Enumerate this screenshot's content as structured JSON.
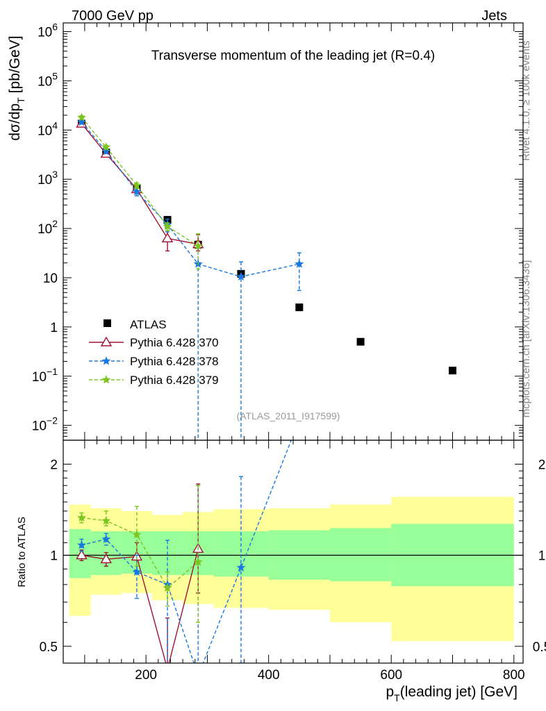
{
  "header": {
    "left": "7000 GeV pp",
    "right": "Jets"
  },
  "side": {
    "rivet": "Rivet 4.1.0, ≥ 100k events",
    "mcplots": "mcplots.cern.ch [arXiv:1306.3436]"
  },
  "chart_data": {
    "type": "scatter",
    "title": "Transverse momentum of the leading jet (R=0.4)",
    "analysis_tag": "(ATLAS_2011_I917599)",
    "xlabel": {
      "base": "p",
      "sub": "T",
      "rest": "(leading jet) [GeV]"
    },
    "ylabel": {
      "text": "dσ/dp",
      "sub": "T",
      "rest": "[pb/GeV]"
    },
    "ratio_ylabel": "Ratio to ATLAS",
    "xlim": [
      65,
      815
    ],
    "ylim_log": [
      0.005,
      1500000
    ],
    "ratio_ylim": [
      0.44,
      2.4
    ],
    "x_ticks": [
      {
        "v": 200,
        "label": "200"
      },
      {
        "v": 400,
        "label": "400"
      },
      {
        "v": 600,
        "label": "600"
      },
      {
        "v": 800,
        "label": "800"
      }
    ],
    "y_ticks": [
      {
        "v": 0.01,
        "b": "10",
        "e": "−2"
      },
      {
        "v": 0.1,
        "b": "10",
        "e": "−1"
      },
      {
        "v": 1,
        "b": "1",
        "e": ""
      },
      {
        "v": 10,
        "b": "10",
        "e": ""
      },
      {
        "v": 100,
        "b": "10",
        "e": "2"
      },
      {
        "v": 1000,
        "b": "10",
        "e": "3"
      },
      {
        "v": 10000,
        "b": "10",
        "e": "4"
      },
      {
        "v": 100000,
        "b": "10",
        "e": "5"
      },
      {
        "v": 1000000,
        "b": "10",
        "e": "6"
      }
    ],
    "ratio_ticks": [
      {
        "v": 0.5,
        "label": "0.5"
      },
      {
        "v": 1,
        "label": "1"
      },
      {
        "v": 2,
        "label": "2"
      }
    ],
    "data": {
      "name": "ATLAS",
      "x": [
        95,
        135,
        185,
        235,
        285,
        355,
        450,
        550,
        700
      ],
      "y": [
        13500,
        3500,
        650,
        150,
        47,
        12,
        2.5,
        0.5,
        0.13
      ]
    },
    "ratio_bands": [
      {
        "x0": 75,
        "x1": 110,
        "y1_lo": 0.84,
        "y1_hi": 1.22,
        "y2_lo": 0.63,
        "y2_hi": 1.47
      },
      {
        "x0": 110,
        "x1": 160,
        "y1_lo": 0.86,
        "y1_hi": 1.2,
        "y2_lo": 0.74,
        "y2_hi": 1.43
      },
      {
        "x0": 160,
        "x1": 210,
        "y1_lo": 0.87,
        "y1_hi": 1.2,
        "y2_lo": 0.75,
        "y2_hi": 1.4
      },
      {
        "x0": 210,
        "x1": 260,
        "y1_lo": 0.86,
        "y1_hi": 1.2,
        "y2_lo": 0.71,
        "y2_hi": 1.36
      },
      {
        "x0": 260,
        "x1": 310,
        "y1_lo": 0.86,
        "y1_hi": 1.2,
        "y2_lo": 0.69,
        "y2_hi": 1.39
      },
      {
        "x0": 310,
        "x1": 400,
        "y1_lo": 0.85,
        "y1_hi": 1.2,
        "y2_lo": 0.67,
        "y2_hi": 1.42
      },
      {
        "x0": 400,
        "x1": 500,
        "y1_lo": 0.83,
        "y1_hi": 1.21,
        "y2_lo": 0.66,
        "y2_hi": 1.43
      },
      {
        "x0": 500,
        "x1": 600,
        "y1_lo": 0.82,
        "y1_hi": 1.23,
        "y2_lo": 0.6,
        "y2_hi": 1.47
      },
      {
        "x0": 600,
        "x1": 800,
        "y1_lo": 0.79,
        "y1_hi": 1.27,
        "y2_lo": 0.52,
        "y2_hi": 1.56
      }
    ],
    "series": [
      {
        "name": "Pythia 6.428 370",
        "color": "#a01030",
        "dash": "none",
        "marker": "triangle",
        "x": [
          95,
          135,
          185,
          235,
          285
        ],
        "y": [
          13500,
          3300,
          630,
          63,
          48
        ],
        "ylo": [
          12500,
          2900,
          550,
          35,
          35
        ],
        "yhi": [
          14500,
          3700,
          710,
          90,
          75
        ],
        "ratio": [
          1.0,
          0.97,
          0.99,
          0.42,
          1.05
        ],
        "rlo": [
          0.96,
          0.92,
          0.87,
          0.24,
          0.75
        ],
        "rhi": [
          1.04,
          1.02,
          1.1,
          0.62,
          1.72
        ]
      },
      {
        "name": "Pythia 6.428 378",
        "color": "#1878e0",
        "dash": "5,3",
        "marker": "star",
        "x": [
          95,
          135,
          185,
          235,
          285,
          355,
          450
        ],
        "y": [
          14500,
          3700,
          560,
          120,
          19,
          10.5,
          19
        ],
        "ylo": [
          13200,
          3300,
          460,
          85,
          0.004,
          0.004,
          5.5
        ],
        "yhi": [
          15800,
          4100,
          660,
          155,
          45,
          21,
          32
        ],
        "ratio": [
          1.08,
          1.13,
          0.88,
          0.8,
          0.4,
          0.91,
          2.8
        ],
        "rlo": [
          1.03,
          1.08,
          0.72,
          0.44,
          0.44,
          0.44,
          2.8
        ],
        "rhi": [
          1.13,
          1.18,
          1.0,
          1.12,
          1.7,
          1.82,
          2.8
        ]
      },
      {
        "name": "Pythia 6.428 379",
        "color": "#7cc41f",
        "dash": "5,3",
        "marker": "star",
        "x": [
          95,
          135,
          185,
          235,
          285
        ],
        "y": [
          18000,
          4500,
          750,
          110,
          44
        ],
        "ylo": [
          16500,
          4100,
          650,
          90,
          15
        ],
        "yhi": [
          19500,
          4900,
          850,
          130,
          78
        ],
        "ratio": [
          1.33,
          1.3,
          1.17,
          0.78,
          0.95
        ],
        "rlo": [
          1.28,
          1.25,
          0.92,
          0.68,
          0.6
        ],
        "rhi": [
          1.38,
          1.4,
          1.45,
          0.88,
          1.7
        ]
      }
    ]
  }
}
